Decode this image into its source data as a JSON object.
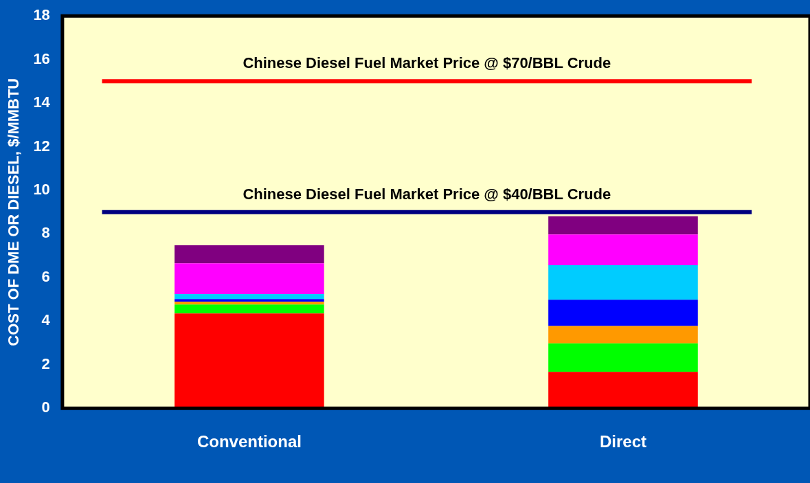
{
  "chart_data": {
    "type": "bar",
    "stacked": true,
    "ylabel": "COST OF DME OR DIESEL, $/MMBTU",
    "categories": [
      "Conventional",
      "Direct"
    ],
    "series": [
      {
        "color": "#ff0000",
        "values": [
          4.35,
          1.67
        ]
      },
      {
        "color": "#00ff00",
        "values": [
          0.41,
          1.31
        ]
      },
      {
        "color": "#ff9900",
        "values": [
          0.13,
          0.79
        ]
      },
      {
        "color": "#0000ff",
        "values": [
          0.12,
          1.21
        ]
      },
      {
        "color": "#00ccff",
        "values": [
          0.23,
          1.58
        ]
      },
      {
        "color": "#ff00ff",
        "values": [
          1.41,
          1.41
        ]
      },
      {
        "color": "#800080",
        "values": [
          0.83,
          0.84
        ]
      }
    ],
    "ylim": [
      0,
      18
    ],
    "yticks": [
      0,
      2,
      4,
      6,
      8,
      10,
      12,
      14,
      16,
      18
    ],
    "grid": false,
    "legend": false,
    "ref_lines": [
      {
        "axis": "y",
        "value": 15,
        "label": "Chinese Diesel Fuel Market Price @ $70/BBL Crude",
        "color": "#ff0000"
      },
      {
        "axis": "y",
        "value": 9,
        "label": "Chinese Diesel Fuel Market Price @ $40/BBL Crude",
        "color": "#000080"
      }
    ]
  }
}
